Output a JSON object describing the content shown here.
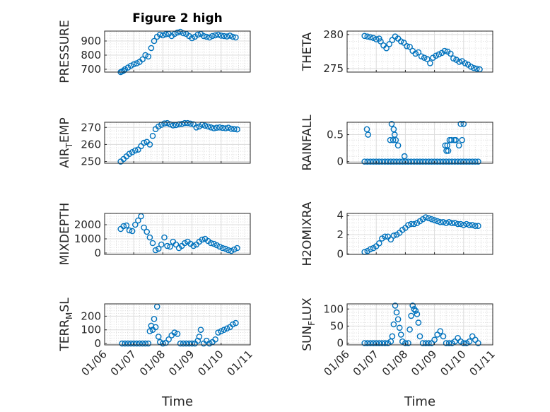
{
  "figure": {
    "title": "Figure 2 high",
    "xlabel": "Time"
  },
  "chart_data": [
    {
      "name": "PRESSURE",
      "type": "scatter",
      "ylabel": "PRESSURE",
      "ylim": [
        680,
        970
      ],
      "yticks": [
        700,
        800,
        900
      ],
      "xticks": [
        "01/06",
        "01/07",
        "01/08",
        "01/09",
        "01/10",
        "01/11"
      ],
      "grid": true,
      "x": [
        0.55,
        0.6,
        0.65,
        0.7,
        0.8,
        0.9,
        1.0,
        1.1,
        1.2,
        1.3,
        1.4,
        1.5,
        1.6,
        1.7,
        1.8,
        1.9,
        2.0,
        2.1,
        2.2,
        2.3,
        2.4,
        2.5,
        2.6,
        2.7,
        2.8,
        2.9,
        3.0,
        3.1,
        3.2,
        3.3,
        3.4,
        3.5,
        3.6,
        3.7,
        3.8,
        3.9,
        4.0,
        4.1,
        4.2,
        4.3,
        4.4,
        4.5
      ],
      "y": [
        680,
        685,
        690,
        700,
        712,
        725,
        735,
        742,
        752,
        770,
        800,
        790,
        850,
        900,
        930,
        945,
        940,
        948,
        950,
        935,
        950,
        960,
        965,
        955,
        950,
        935,
        920,
        930,
        945,
        950,
        935,
        930,
        925,
        935,
        940,
        945,
        938,
        935,
        932,
        938,
        930,
        925
      ]
    },
    {
      "name": "THETA",
      "type": "scatter",
      "ylabel": "THETA",
      "ylim": [
        274.5,
        280.5
      ],
      "yticks": [
        275,
        280
      ],
      "xticks": [
        "01/06",
        "01/07",
        "01/08",
        "01/09",
        "01/10",
        "01/11"
      ],
      "grid": true,
      "x": [
        0.6,
        0.7,
        0.8,
        0.9,
        1.0,
        1.1,
        1.15,
        1.25,
        1.35,
        1.45,
        1.55,
        1.65,
        1.75,
        1.85,
        1.95,
        2.05,
        2.15,
        2.25,
        2.35,
        2.45,
        2.55,
        2.65,
        2.75,
        2.85,
        2.95,
        3.05,
        3.15,
        3.25,
        3.35,
        3.45,
        3.55,
        3.65,
        3.75,
        3.85,
        3.95,
        4.05,
        4.15,
        4.25,
        4.35,
        4.45,
        4.55
      ],
      "y": [
        279.8,
        279.7,
        279.6,
        279.5,
        279.3,
        279.4,
        279.0,
        278.4,
        278.0,
        278.6,
        279.2,
        279.7,
        279.4,
        279.0,
        278.8,
        278.3,
        278.2,
        277.6,
        277.2,
        277.4,
        276.8,
        276.6,
        276.4,
        275.8,
        276.6,
        276.9,
        277.1,
        277.3,
        277.6,
        277.5,
        277.2,
        276.5,
        276.3,
        276.0,
        276.1,
        275.8,
        275.6,
        275.3,
        275.1,
        275.0,
        274.9
      ]
    },
    {
      "name": "AIR_TEMP",
      "type": "scatter",
      "ylabel": "AIR_TEMP",
      "ylim": [
        249,
        273
      ],
      "yticks": [
        250,
        260,
        270
      ],
      "xticks": [
        "01/06",
        "01/07",
        "01/08",
        "01/09",
        "01/10",
        "01/11"
      ],
      "grid": true,
      "x": [
        0.55,
        0.65,
        0.75,
        0.85,
        0.95,
        1.05,
        1.15,
        1.25,
        1.35,
        1.45,
        1.55,
        1.65,
        1.75,
        1.85,
        1.95,
        2.05,
        2.15,
        2.25,
        2.35,
        2.45,
        2.55,
        2.65,
        2.75,
        2.85,
        2.95,
        3.05,
        3.15,
        3.25,
        3.35,
        3.45,
        3.55,
        3.65,
        3.75,
        3.85,
        3.95,
        4.05,
        4.15,
        4.25,
        4.35,
        4.45,
        4.55
      ],
      "y": [
        250,
        251.5,
        253,
        254.5,
        255.5,
        256.5,
        257,
        259,
        261,
        261.5,
        260,
        265,
        269,
        270.5,
        271.5,
        272.3,
        272.5,
        271.8,
        271.2,
        271.4,
        271.8,
        272,
        272.5,
        272.5,
        272.2,
        271.8,
        270,
        270.5,
        271.5,
        271,
        270.5,
        270,
        269.5,
        269.8,
        270,
        269.7,
        269.5,
        269.8,
        269.2,
        269,
        268.8
      ]
    },
    {
      "name": "RAINFALL",
      "type": "scatter",
      "ylabel": "RAINFALL",
      "ylim": [
        -0.03,
        0.73
      ],
      "yticks": [
        0,
        0.5
      ],
      "xticks": [
        "01/06",
        "01/07",
        "01/08",
        "01/09",
        "01/10",
        "01/11"
      ],
      "grid": true,
      "x": [
        0.6,
        0.7,
        0.8,
        0.9,
        1.0,
        1.1,
        1.2,
        1.3,
        1.4,
        1.5,
        1.6,
        1.7,
        1.8,
        1.9,
        2.0,
        2.1,
        2.2,
        2.3,
        2.4,
        2.5,
        2.6,
        2.7,
        2.8,
        2.9,
        3.0,
        3.1,
        3.2,
        3.3,
        3.4,
        3.5,
        3.6,
        3.7,
        3.8,
        3.9,
        4.0,
        4.1,
        4.2,
        4.3,
        4.4,
        4.5,
        0.68,
        0.72,
        1.48,
        1.53,
        1.58,
        1.6,
        1.63,
        1.67,
        1.75,
        1.97,
        3.37,
        3.41,
        3.44,
        3.47,
        3.52,
        3.58,
        3.68,
        3.73,
        3.84,
        3.9,
        3.95,
        4.0
      ],
      "y": [
        0,
        0,
        0,
        0,
        0,
        0,
        0,
        0,
        0,
        0,
        0,
        0,
        0,
        0,
        0,
        0,
        0,
        0,
        0,
        0,
        0,
        0,
        0,
        0,
        0,
        0,
        0,
        0,
        0,
        0,
        0,
        0,
        0,
        0,
        0,
        0,
        0,
        0,
        0,
        0,
        0.6,
        0.5,
        0.4,
        0.7,
        0.4,
        0.6,
        0.5,
        0.4,
        0.3,
        0.1,
        0.3,
        0.2,
        0.3,
        0.2,
        0.4,
        0.4,
        0.4,
        0.4,
        0.3,
        0.7,
        0.4,
        0.7
      ]
    },
    {
      "name": "MIXDEPTH",
      "type": "scatter",
      "ylabel": "MIXDEPTH",
      "ylim": [
        -100,
        2800
      ],
      "yticks": [
        0,
        1000,
        2000
      ],
      "xticks": [
        "01/06",
        "01/07",
        "01/08",
        "01/09",
        "01/10",
        "01/11"
      ],
      "grid": true,
      "x": [
        0.55,
        0.65,
        0.75,
        0.85,
        0.95,
        1.05,
        1.15,
        1.25,
        1.35,
        1.45,
        1.55,
        1.65,
        1.75,
        1.85,
        1.95,
        2.05,
        2.15,
        2.25,
        2.35,
        2.45,
        2.55,
        2.65,
        2.75,
        2.85,
        2.95,
        3.05,
        3.15,
        3.25,
        3.35,
        3.45,
        3.55,
        3.65,
        3.75,
        3.85,
        3.95,
        4.05,
        4.15,
        4.25,
        4.35,
        4.45,
        4.55
      ],
      "y": [
        1700,
        1900,
        1950,
        1600,
        1550,
        2000,
        2300,
        2600,
        1800,
        1500,
        1100,
        700,
        200,
        300,
        600,
        1100,
        500,
        450,
        800,
        600,
        350,
        500,
        700,
        800,
        650,
        500,
        600,
        800,
        950,
        1000,
        850,
        700,
        650,
        550,
        450,
        350,
        300,
        200,
        150,
        250,
        350
      ]
    },
    {
      "name": "H2OMIXRA",
      "type": "scatter",
      "ylabel": "H2OMIXRA",
      "ylim": [
        -0.05,
        4.2
      ],
      "yticks": [
        0,
        2,
        4
      ],
      "xticks": [
        "01/06",
        "01/07",
        "01/08",
        "01/09",
        "01/10",
        "01/11"
      ],
      "grid": true,
      "x": [
        0.6,
        0.7,
        0.8,
        0.9,
        1.0,
        1.1,
        1.2,
        1.3,
        1.4,
        1.5,
        1.6,
        1.7,
        1.8,
        1.9,
        2.0,
        2.1,
        2.2,
        2.3,
        2.4,
        2.5,
        2.6,
        2.7,
        2.8,
        2.9,
        3.0,
        3.1,
        3.2,
        3.3,
        3.4,
        3.5,
        3.6,
        3.7,
        3.8,
        3.9,
        4.0,
        4.1,
        4.2,
        4.3,
        4.4,
        4.5
      ],
      "y": [
        0.2,
        0.3,
        0.5,
        0.6,
        0.8,
        1.1,
        1.6,
        1.8,
        1.8,
        1.5,
        1.9,
        2.0,
        2.2,
        2.5,
        2.7,
        3.0,
        3.1,
        3.1,
        3.2,
        3.4,
        3.6,
        3.8,
        3.7,
        3.6,
        3.5,
        3.4,
        3.3,
        3.3,
        3.2,
        3.3,
        3.2,
        3.2,
        3.1,
        3.1,
        3.0,
        3.1,
        3.0,
        3.0,
        2.9,
        2.9
      ]
    },
    {
      "name": "TERR_MSL",
      "type": "scatter",
      "ylabel": "TERR_MSL",
      "ylim": [
        -10,
        290
      ],
      "yticks": [
        0,
        100,
        200
      ],
      "xticks": [
        "01/06",
        "01/07",
        "01/08",
        "01/09",
        "01/10",
        "01/11"
      ],
      "grid": true,
      "x": [
        0.6,
        0.7,
        0.8,
        0.9,
        1.0,
        1.1,
        1.2,
        1.3,
        1.4,
        1.5,
        1.55,
        1.6,
        1.65,
        1.7,
        1.75,
        1.8,
        1.85,
        1.9,
        2.0,
        2.1,
        2.2,
        2.3,
        2.4,
        2.5,
        2.6,
        2.7,
        2.8,
        2.9,
        3.0,
        3.1,
        3.2,
        3.25,
        3.3,
        3.4,
        3.5,
        3.6,
        3.7,
        3.8,
        3.9,
        4.0,
        4.1,
        4.2,
        4.3,
        4.4,
        4.5
      ],
      "y": [
        0,
        0,
        0,
        0,
        0,
        0,
        0,
        0,
        0,
        0,
        90,
        130,
        100,
        180,
        120,
        270,
        50,
        10,
        0,
        5,
        30,
        60,
        80,
        70,
        0,
        0,
        0,
        0,
        0,
        0,
        20,
        50,
        100,
        0,
        20,
        0,
        10,
        30,
        80,
        90,
        100,
        110,
        120,
        140,
        150
      ]
    },
    {
      "name": "SUN_FLUX",
      "type": "scatter",
      "ylabel": "SUN_FLUX",
      "ylim": [
        -5,
        115
      ],
      "yticks": [
        0,
        50,
        100
      ],
      "xticks": [
        "01/06",
        "01/07",
        "01/08",
        "01/09",
        "01/10",
        "01/11"
      ],
      "grid": true,
      "x": [
        0.6,
        0.7,
        0.8,
        0.9,
        1.0,
        1.1,
        1.2,
        1.3,
        1.4,
        1.5,
        1.55,
        1.6,
        1.65,
        1.7,
        1.75,
        1.8,
        1.85,
        1.9,
        2.0,
        2.1,
        2.15,
        2.2,
        2.25,
        2.3,
        2.35,
        2.4,
        2.45,
        2.5,
        2.6,
        2.7,
        2.8,
        2.9,
        3.0,
        3.1,
        3.2,
        3.3,
        3.4,
        3.5,
        3.6,
        3.7,
        3.8,
        3.9,
        4.0,
        4.1,
        4.2,
        4.3,
        4.4,
        4.5
      ],
      "y": [
        0,
        0,
        0,
        0,
        0,
        0,
        0,
        0,
        0,
        5,
        20,
        55,
        110,
        90,
        70,
        45,
        25,
        5,
        0,
        0,
        40,
        80,
        110,
        100,
        95,
        85,
        60,
        20,
        0,
        0,
        0,
        0,
        10,
        25,
        35,
        20,
        0,
        0,
        0,
        5,
        15,
        5,
        0,
        0,
        5,
        20,
        10,
        0
      ]
    }
  ]
}
